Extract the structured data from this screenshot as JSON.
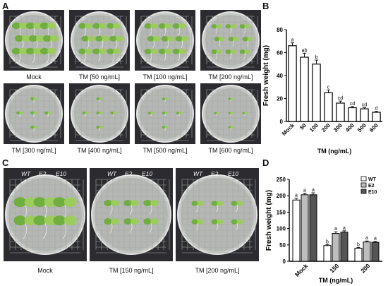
{
  "panels": {
    "A": {
      "label": "A",
      "dishes": [
        {
          "caption": "Mock",
          "plants": 9,
          "size": 1.0
        },
        {
          "caption": "TM [50 ng/mL]",
          "plants": 9,
          "size": 0.85
        },
        {
          "caption": "TM [100 ng/mL]",
          "plants": 9,
          "size": 0.8
        },
        {
          "caption": "TM [200 ng/mL]",
          "plants": 9,
          "size": 0.6
        },
        {
          "caption": "TM [300 ng/mL]",
          "plants": 5,
          "size": 0.32
        },
        {
          "caption": "TM [400 ng/mL]",
          "plants": 5,
          "size": 0.28
        },
        {
          "caption": "TM [500 ng/mL]",
          "plants": 5,
          "size": 0.25
        },
        {
          "caption": "TM [600 ng/mL]",
          "plants": 5,
          "size": 0.18
        }
      ]
    },
    "B": {
      "label": "B"
    },
    "C": {
      "label": "C",
      "genotypes": [
        "WT",
        "E2",
        "E10"
      ],
      "dishes": [
        {
          "caption": "Mock",
          "size": 1.0
        },
        {
          "caption": "TM [150 ng/mL]",
          "size": 0.6
        },
        {
          "caption": "TM [200 ng/mL]",
          "size": 0.45
        }
      ]
    },
    "D": {
      "label": "D"
    }
  },
  "colors": {
    "leaf": "#6fae3f",
    "leaf_light": "#9ccc5c",
    "wt": "#ffffff",
    "e2": "#bdbdbd",
    "e10": "#555555"
  },
  "chart_data": [
    {
      "type": "bar",
      "ylabel": "Fresh weight (mg)",
      "xlabel": "TM (ng/mL)",
      "ylim": [
        0,
        80
      ],
      "yticks": [
        0,
        20,
        40,
        60,
        80
      ],
      "categories": [
        "Mock",
        "50",
        "100",
        "200",
        "300",
        "400",
        "500",
        "600"
      ],
      "values": [
        66,
        56,
        50,
        25,
        16,
        12,
        11,
        8
      ],
      "errors": [
        2.5,
        3.5,
        3.5,
        2.5,
        1.8,
        1.0,
        1.0,
        0.8
      ],
      "letters": [
        "a",
        "ab",
        "b",
        "c",
        "cd",
        "cd",
        "cd",
        "d"
      ],
      "legend": null
    },
    {
      "type": "bar",
      "ylabel": "Fresh weight (mg)",
      "xlabel": "TM (ng/mL)",
      "ylim": [
        0,
        250
      ],
      "yticks": [
        0,
        50,
        100,
        150,
        200,
        250
      ],
      "categories": [
        "Mock",
        "150",
        "200"
      ],
      "series": [
        {
          "name": "WT",
          "values": [
            187,
            48,
            40
          ],
          "errors": [
            6,
            3,
            2
          ],
          "letters": [
            "a",
            "b",
            "b"
          ]
        },
        {
          "name": "E2",
          "values": [
            203,
            85,
            59
          ],
          "errors": [
            5,
            5,
            3
          ],
          "letters": [
            "a",
            "a",
            "a"
          ]
        },
        {
          "name": "E10",
          "values": [
            203,
            89,
            58
          ],
          "errors": [
            6,
            4,
            3
          ],
          "letters": [
            "a",
            "a",
            "a"
          ]
        }
      ],
      "legend": "top-right"
    }
  ]
}
